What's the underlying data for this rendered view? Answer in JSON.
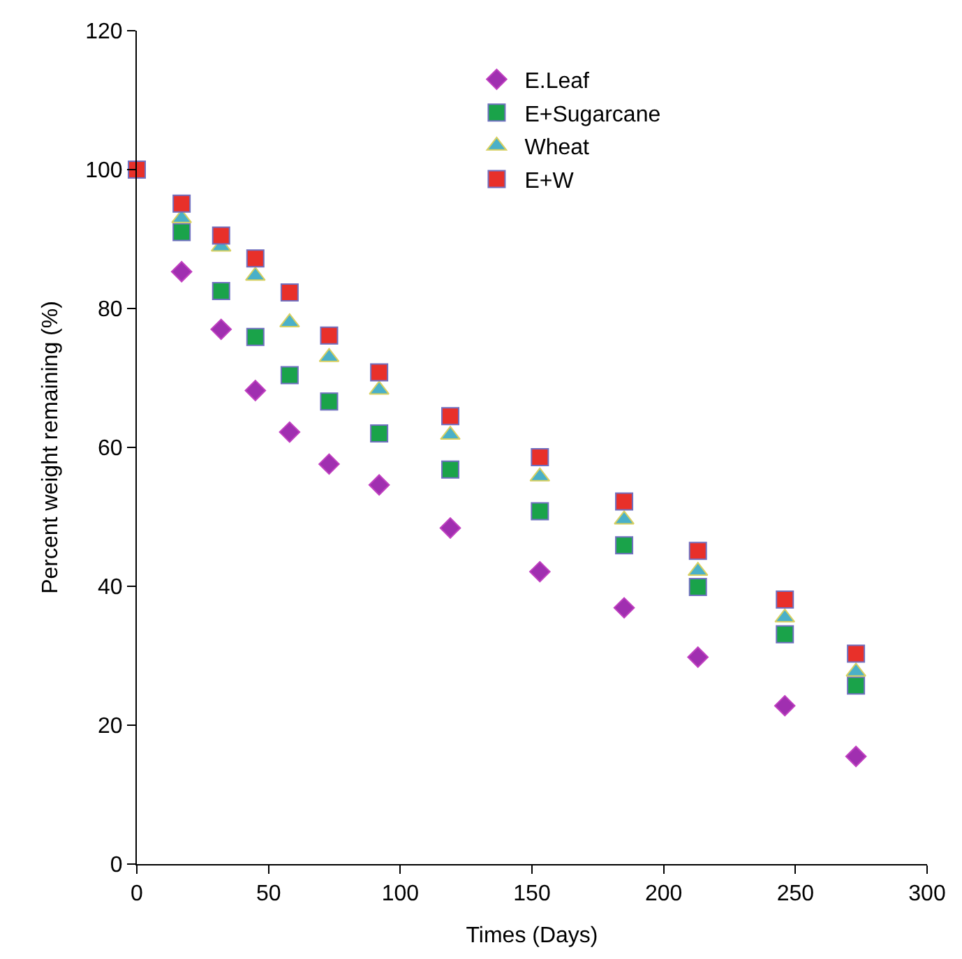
{
  "chart_data": {
    "type": "scatter",
    "xlabel": "Times (Days)",
    "ylabel": "Percent weight remaining (%)",
    "x": [
      0,
      17,
      32,
      45,
      58,
      73,
      92,
      119,
      153,
      185,
      213,
      246,
      273
    ],
    "xlim": [
      0,
      300
    ],
    "xticks": [
      0,
      50,
      100,
      150,
      200,
      250,
      300
    ],
    "ylim": [
      0,
      120
    ],
    "yticks": [
      0,
      20,
      40,
      60,
      80,
      100,
      120
    ],
    "legend": "top",
    "series": [
      {
        "name": "E.Leaf",
        "color": "#a02fb0",
        "marker": "diamond",
        "values": [
          null,
          85.3,
          77,
          68.2,
          62.2,
          57.6,
          54.6,
          48.4,
          42.1,
          36.9,
          29.8,
          22.8,
          15.5
        ]
      },
      {
        "name": "E+Sugarcane",
        "color": "#1aa34a",
        "marker": "square",
        "values": [
          null,
          91,
          82.5,
          75.9,
          70.4,
          66.6,
          62,
          56.8,
          50.8,
          45.9,
          39.9,
          33.1,
          25.7
        ]
      },
      {
        "name": "Wheat",
        "color": "#4ab0c8",
        "marker": "triangle",
        "values": [
          null,
          93,
          88.9,
          84.7,
          78,
          73,
          68.3,
          61.8,
          55.8,
          49.6,
          42.2,
          35.5,
          27.7
        ]
      },
      {
        "name": "E+W",
        "color": "#e8302a",
        "marker": "square",
        "values": [
          100,
          95.1,
          90.5,
          87.2,
          82.3,
          76.1,
          70.8,
          64.5,
          58.6,
          52.2,
          45.1,
          38.1,
          30.3
        ]
      }
    ]
  }
}
